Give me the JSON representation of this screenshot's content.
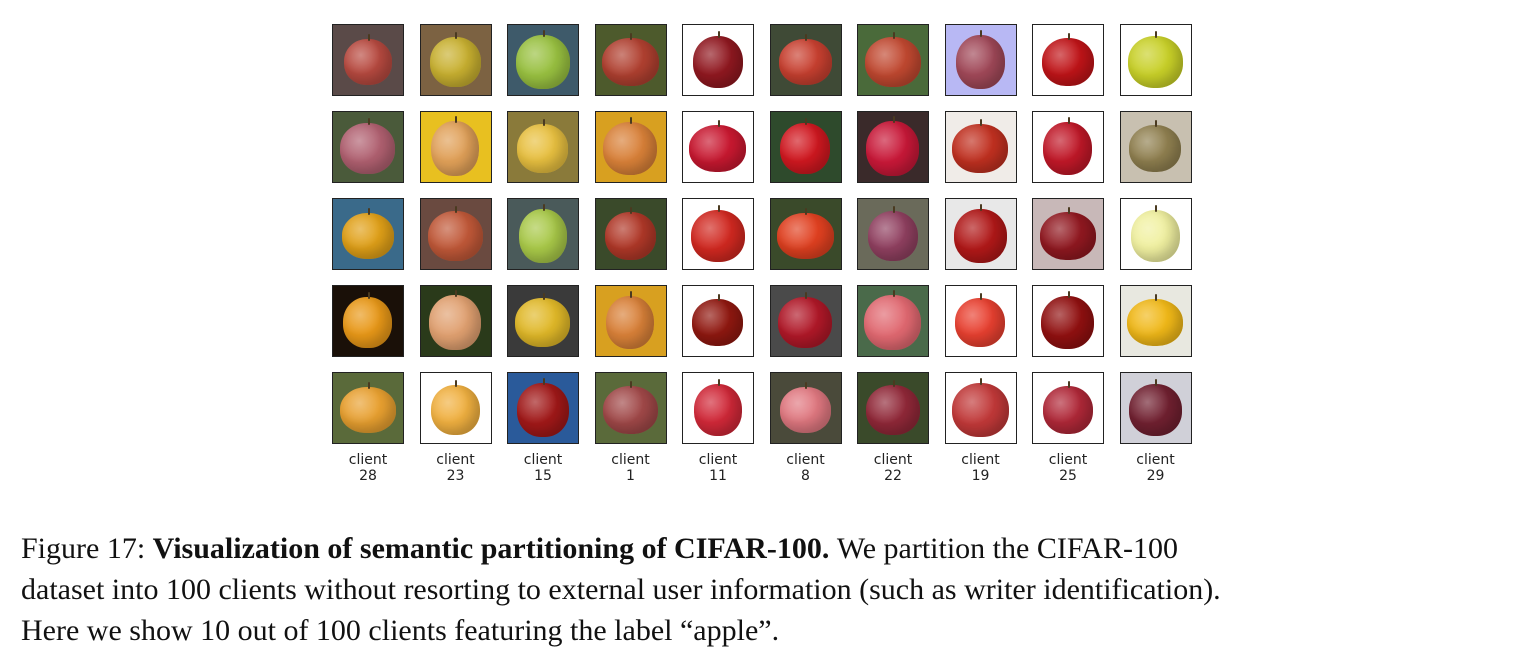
{
  "grid": {
    "rows": 5,
    "columns": 10,
    "tiles": [
      [
        "#5a4a48",
        "#7c6242",
        "#3e5a6a",
        "#4d5a2c",
        "#ffffff",
        "#3f4a36",
        "#4a6a3a",
        "#b8b8f4",
        "#ffffff",
        "#ffffff"
      ],
      [
        "#4a5a3a",
        "#e8c020",
        "#8a7a3a",
        "#d8a020",
        "#ffffff",
        "#2e4a2c",
        "#3a2a2a",
        "#f0ece8",
        "#ffffff",
        "#c8c0b0"
      ],
      [
        "#3a6a8a",
        "#6a4a40",
        "#4a5a5a",
        "#3a4a2a",
        "#ffffff",
        "#3a4a2a",
        "#6a6a5a",
        "#e8e8e8",
        "#c8b8b8",
        "#ffffff"
      ],
      [
        "#1a1008",
        "#2a3a1a",
        "#3a3a3a",
        "#d8a020",
        "#ffffff",
        "#4a4a4a",
        "#4a6a4a",
        "#ffffff",
        "#ffffff",
        "#e8e8e0"
      ],
      [
        "#5a6a3a",
        "#ffffff",
        "#2a5a9a",
        "#5a6a3a",
        "#ffffff",
        "#4a4a3a",
        "#3a4a2a",
        "#ffffff",
        "#ffffff",
        "#d0d0d8"
      ]
    ],
    "apples": [
      [
        "#b84a40",
        "#c8b030",
        "#98c040",
        "#b04030",
        "#901820",
        "#c84030",
        "#c04830",
        "#a04858",
        "#c01418",
        "#c8d028"
      ],
      [
        "#b06070",
        "#e0a058",
        "#e8c040",
        "#d88038",
        "#c81830",
        "#d01820",
        "#c81838",
        "#c03020",
        "#c01828",
        "#908050"
      ],
      [
        "#e0a018",
        "#c05838",
        "#a8c848",
        "#b03828",
        "#d02820",
        "#e04020",
        "#904060",
        "#b01818",
        "#901820",
        "#f0f0a0"
      ],
      [
        "#e89818",
        "#e0a070",
        "#e0b828",
        "#d88038",
        "#901810",
        "#b01828",
        "#e06870",
        "#e84030",
        "#901010",
        "#f0b818"
      ],
      [
        "#e8a030",
        "#f0b040",
        "#a01818",
        "#a04848",
        "#d02838",
        "#e07880",
        "#902838",
        "#c03838",
        "#b02838",
        "#702030"
      ]
    ],
    "clients": [
      "28",
      "23",
      "15",
      "1",
      "11",
      "8",
      "22",
      "19",
      "25",
      "29"
    ],
    "client_word": "client"
  },
  "caption": {
    "figure_label": "Figure 17:",
    "bold_title": "Visualization of semantic partitioning of CIFAR-100.",
    "text_line1_tail": "We partition the CIFAR-100",
    "text_line2": "dataset into 100 clients without resorting to external user information (such as writer identification).",
    "text_line3": "Here we show 10 out of 100 clients featuring the label “apple”."
  }
}
